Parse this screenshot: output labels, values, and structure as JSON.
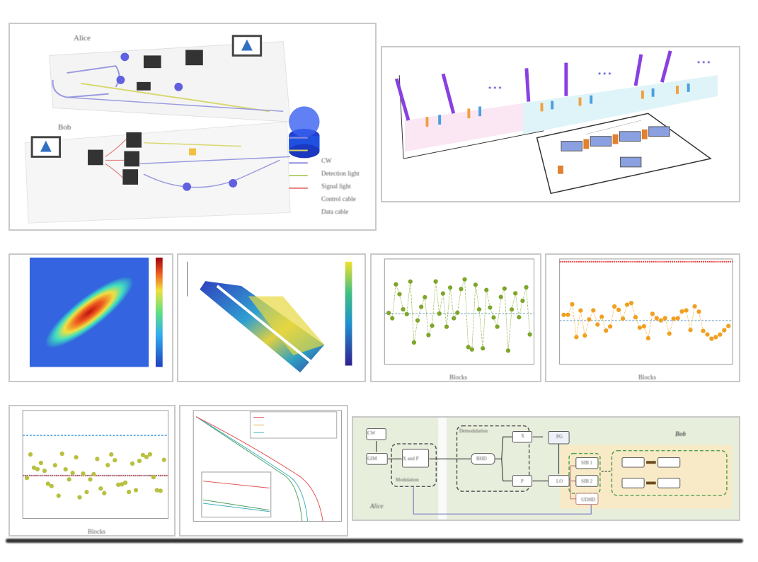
{
  "panel_a": {
    "alice": "Alice",
    "bob": "Bob",
    "legend": [
      "CW",
      "Detection light",
      "Signal light",
      "Control cable",
      "Data cable"
    ],
    "legend_colors": [
      "#8a8ad8",
      "#d8d860",
      "#8f8fe0",
      "#b8d070",
      "#e07070"
    ]
  },
  "panel_b": {
    "ellipsis": "• • •"
  },
  "charts": {
    "xlabel_blocks": "Blocks",
    "point_color": "#7ea62a",
    "orange_color": "#f0a020",
    "reference_red": "#e04040",
    "reference_blue": "#4aa0e0"
  },
  "panel_i": {
    "cw": "CW",
    "gim": "GIM",
    "xp": "X and P",
    "modulation": "Modulation",
    "demodulation": "Demodulation",
    "bhd": "BHD",
    "x": "X",
    "p": "P",
    "pg": "PG",
    "lo": "LO",
    "sib1": "SIB 1",
    "sib2": "SIB 2",
    "udhd": "UDHD",
    "alice": "Alice",
    "bob": "Bob"
  }
}
